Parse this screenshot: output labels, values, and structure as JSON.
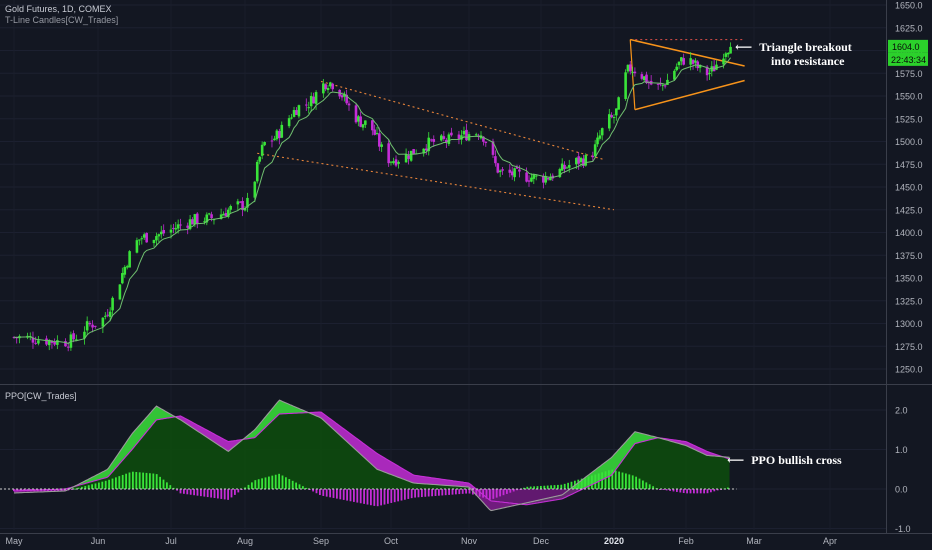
{
  "header": {
    "symbol_line": "Gold Futures, 1D, COMEX",
    "indicator_line": "T-Line Candles[CW_Trades]",
    "ppo_label": "PPO[CW_Trades]"
  },
  "annotations": {
    "triangle_line1": "Triangle breakout",
    "triangle_line2": "into resistance",
    "ppo_note": "PPO bullish cross",
    "arrow_glyph": "⟵"
  },
  "price_tag": {
    "value": "1604.0",
    "countdown": "22:43:34",
    "color": "#2bd12b"
  },
  "colors": {
    "background": "#131722",
    "bull_candle": "#39e339",
    "bear_candle": "#c42dd6",
    "tline": "#6fbf6f",
    "trend_dotted": "#e8843a",
    "triangle": "#f7931a",
    "resistance_dotted": "#e0504a",
    "ppo_fill_bull": "#0d4a0d",
    "ppo_fill_bear": "#6a1a78",
    "ppo_line": "#9a9a9a",
    "signal_line": "#c52fd6"
  },
  "chart_data": [
    {
      "type": "candlestick",
      "title": "Gold Futures, 1D, COMEX",
      "y_axis_ticks": [
        1250,
        1275,
        1300,
        1325,
        1350,
        1375,
        1400,
        1425,
        1450,
        1475,
        1500,
        1525,
        1550,
        1575,
        1600,
        1625,
        1650
      ],
      "ylim": [
        1240,
        1660
      ],
      "x_axis_labels": [
        "May",
        "Jun",
        "Jul",
        "Aug",
        "Sep",
        "Oct",
        "Nov",
        "Dec",
        "2020",
        "Feb",
        "Mar",
        "Apr"
      ],
      "key_points": [
        {
          "date": "2019-05-01",
          "close": 1285
        },
        {
          "date": "2019-05-20",
          "close": 1280
        },
        {
          "date": "2019-05-31",
          "close": 1300
        },
        {
          "date": "2019-06-20",
          "close": 1395
        },
        {
          "date": "2019-07-15",
          "close": 1415
        },
        {
          "date": "2019-08-01",
          "close": 1430
        },
        {
          "date": "2019-08-10",
          "close": 1500
        },
        {
          "date": "2019-08-25",
          "close": 1540
        },
        {
          "date": "2019-09-04",
          "close": 1565
        },
        {
          "date": "2019-09-20",
          "close": 1520
        },
        {
          "date": "2019-10-01",
          "close": 1480
        },
        {
          "date": "2019-10-20",
          "close": 1500
        },
        {
          "date": "2019-11-05",
          "close": 1510
        },
        {
          "date": "2019-11-15",
          "close": 1465
        },
        {
          "date": "2019-12-01",
          "close": 1460
        },
        {
          "date": "2019-12-20",
          "close": 1480
        },
        {
          "date": "2019-12-31",
          "close": 1525
        },
        {
          "date": "2020-01-08",
          "close": 1580
        },
        {
          "date": "2020-01-20",
          "close": 1560
        },
        {
          "date": "2020-02-01",
          "close": 1590
        },
        {
          "date": "2020-02-10",
          "close": 1575
        },
        {
          "date": "2020-02-20",
          "close": 1604
        }
      ],
      "last_price": 1604.0
    },
    {
      "type": "line",
      "title": "PPO[CW_Trades]",
      "y_axis_ticks": [
        -1.0,
        0.0,
        1.0,
        2.0
      ],
      "ylim": [
        -1.0,
        2.45
      ],
      "series": [
        {
          "points": [
            {
              "date": "2019-05-01",
              "value": -0.1
            },
            {
              "date": "2019-05-20",
              "value": -0.05
            },
            {
              "date": "2019-06-05",
              "value": 0.5
            },
            {
              "date": "2019-06-15",
              "value": 1.4
            },
            {
              "date": "2019-06-25",
              "value": 2.1
            },
            {
              "date": "2019-07-05",
              "value": 1.75
            },
            {
              "date": "2019-07-25",
              "value": 0.95
            },
            {
              "date": "2019-08-05",
              "value": 1.5
            },
            {
              "date": "2019-08-15",
              "value": 2.25
            },
            {
              "date": "2019-09-01",
              "value": 1.8
            },
            {
              "date": "2019-09-25",
              "value": 0.5
            },
            {
              "date": "2019-10-10",
              "value": 0.15
            },
            {
              "date": "2019-11-01",
              "value": 0.05
            },
            {
              "date": "2019-11-10",
              "value": -0.55
            },
            {
              "date": "2019-11-25",
              "value": -0.35
            },
            {
              "date": "2019-12-10",
              "value": -0.15
            },
            {
              "date": "2019-12-31",
              "value": 0.8
            },
            {
              "date": "2020-01-10",
              "value": 1.45
            },
            {
              "date": "2020-01-20",
              "value": 1.3
            },
            {
              "date": "2020-02-01",
              "value": 1.1
            },
            {
              "date": "2020-02-10",
              "value": 0.85
            },
            {
              "date": "2020-02-20",
              "value": 0.8
            }
          ]
        },
        {
          "points": [
            {
              "date": "2019-05-01",
              "value": -0.05
            },
            {
              "date": "2019-05-20",
              "value": 0.0
            },
            {
              "date": "2019-06-05",
              "value": 0.3
            },
            {
              "date": "2019-06-15",
              "value": 1.0
            },
            {
              "date": "2019-06-25",
              "value": 1.75
            },
            {
              "date": "2019-07-05",
              "value": 1.85
            },
            {
              "date": "2019-07-25",
              "value": 1.2
            },
            {
              "date": "2019-08-05",
              "value": 1.3
            },
            {
              "date": "2019-08-15",
              "value": 1.9
            },
            {
              "date": "2019-09-01",
              "value": 1.95
            },
            {
              "date": "2019-09-25",
              "value": 0.9
            },
            {
              "date": "2019-10-10",
              "value": 0.35
            },
            {
              "date": "2019-11-01",
              "value": 0.15
            },
            {
              "date": "2019-11-10",
              "value": -0.3
            },
            {
              "date": "2019-11-25",
              "value": -0.4
            },
            {
              "date": "2019-12-10",
              "value": -0.25
            },
            {
              "date": "2019-12-31",
              "value": 0.35
            },
            {
              "date": "2020-01-10",
              "value": 1.15
            },
            {
              "date": "2020-01-20",
              "value": 1.3
            },
            {
              "date": "2020-02-01",
              "value": 1.2
            },
            {
              "date": "2020-02-10",
              "value": 0.95
            },
            {
              "date": "2020-02-20",
              "value": 0.75
            }
          ]
        }
      ]
    }
  ]
}
